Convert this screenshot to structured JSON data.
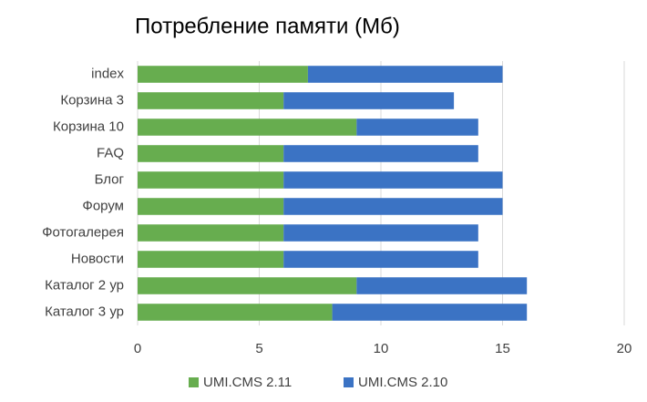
{
  "chart_data": {
    "type": "bar",
    "orientation": "horizontal",
    "stacked": true,
    "title": "Потребление памяти (Мб)",
    "categories": [
      "index",
      "Корзина 3",
      "Корзина 10",
      "FAQ",
      "Блог",
      "Форум",
      "Фотогалерея",
      "Новости",
      "Каталог 2 ур",
      "Каталог 3 ур"
    ],
    "series": [
      {
        "name": "UMI.CMS 2.11",
        "color": "#67ad4f",
        "values": [
          7,
          6,
          9,
          6,
          6,
          6,
          6,
          6,
          9,
          8
        ]
      },
      {
        "name": "UMI.CMS 2.10",
        "color": "#3b73c4",
        "values": [
          8,
          7,
          5,
          8,
          9,
          9,
          8,
          8,
          7,
          8
        ]
      }
    ],
    "xlim": [
      0,
      20
    ],
    "xticks": [
      0,
      5,
      10,
      15,
      20
    ],
    "grid": true,
    "legend": "bottom"
  }
}
